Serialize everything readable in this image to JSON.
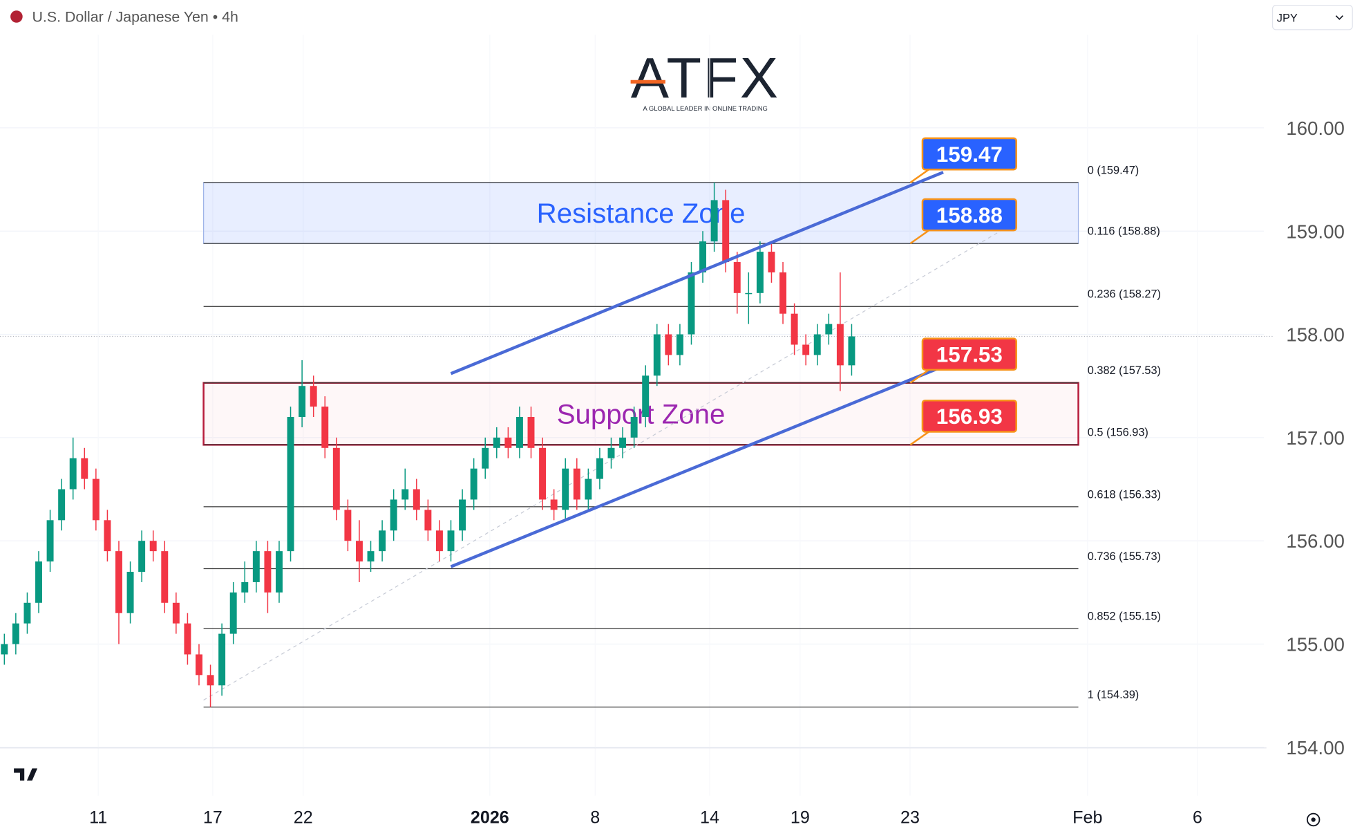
{
  "chart_data": {
    "type": "candlestick",
    "title": "U.S. Dollar / Japanese Yen • 4h",
    "currency": "JPY",
    "logo": {
      "name": "ATFX",
      "tagline": "A GLOBAL LEADER IN ONLINE TRADING"
    },
    "x": [
      0,
      1,
      2,
      3,
      4,
      5,
      6,
      7,
      8,
      9,
      10,
      11,
      12,
      13,
      14,
      15,
      16,
      17,
      18,
      19,
      20,
      21,
      22,
      23,
      24,
      25,
      26,
      27,
      28,
      29,
      30,
      31,
      32,
      33,
      34,
      35,
      36,
      37,
      38,
      39,
      40,
      41,
      42,
      43,
      44,
      45,
      46,
      47,
      48,
      49,
      50,
      51,
      52,
      53,
      54,
      55,
      56,
      57,
      58,
      59,
      60,
      61,
      62,
      63,
      64,
      65,
      66,
      67,
      68,
      69,
      70,
      71,
      72,
      73,
      74
    ],
    "open": [
      154.9,
      155.0,
      155.2,
      155.4,
      155.8,
      156.2,
      156.5,
      156.8,
      156.6,
      156.2,
      155.9,
      155.3,
      155.7,
      156.0,
      155.9,
      155.4,
      155.2,
      154.9,
      154.7,
      154.6,
      155.1,
      155.5,
      155.6,
      155.9,
      155.5,
      155.9,
      157.2,
      157.5,
      157.3,
      156.9,
      156.3,
      156.0,
      155.8,
      155.9,
      156.1,
      156.4,
      156.5,
      156.3,
      156.1,
      155.9,
      156.1,
      156.4,
      156.7,
      156.9,
      157.0,
      156.9,
      157.2,
      156.9,
      156.4,
      156.3,
      156.7,
      156.4,
      156.6,
      156.8,
      156.9,
      157.0,
      157.2,
      157.6,
      158.0,
      157.8,
      158.0,
      158.6,
      158.9,
      159.3,
      158.7,
      158.4,
      158.4,
      158.8,
      158.6,
      158.2,
      157.9,
      157.8,
      158.0,
      158.1,
      157.7
    ],
    "high": [
      155.1,
      155.3,
      155.5,
      155.9,
      156.3,
      156.6,
      157.0,
      156.9,
      156.7,
      156.3,
      156.0,
      155.8,
      156.1,
      156.1,
      156.0,
      155.5,
      155.3,
      155.0,
      154.8,
      155.2,
      155.6,
      155.8,
      156.0,
      156.0,
      156.0,
      157.3,
      157.75,
      157.6,
      157.4,
      157.0,
      156.4,
      156.2,
      156.0,
      156.2,
      156.5,
      156.7,
      156.6,
      156.4,
      156.2,
      156.2,
      156.5,
      156.8,
      157.0,
      157.1,
      157.1,
      157.3,
      157.3,
      157.0,
      156.5,
      156.8,
      156.8,
      156.7,
      156.9,
      157.0,
      157.1,
      157.3,
      157.7,
      158.1,
      158.1,
      158.1,
      158.7,
      159.0,
      159.47,
      159.4,
      158.8,
      158.6,
      158.9,
      158.9,
      158.7,
      158.3,
      158.0,
      158.1,
      158.2,
      158.6,
      158.1
    ],
    "low": [
      154.8,
      154.9,
      155.1,
      155.3,
      155.7,
      156.1,
      156.4,
      156.5,
      156.1,
      155.8,
      155.0,
      155.2,
      155.6,
      155.8,
      155.3,
      155.1,
      154.8,
      154.6,
      154.39,
      154.5,
      155.0,
      155.4,
      155.5,
      155.3,
      155.4,
      155.8,
      157.1,
      157.2,
      156.8,
      156.2,
      155.9,
      155.6,
      155.7,
      155.8,
      156.0,
      156.3,
      156.2,
      156.0,
      155.8,
      155.8,
      156.0,
      156.3,
      156.6,
      156.8,
      156.8,
      156.8,
      156.8,
      156.3,
      156.2,
      156.2,
      156.3,
      156.3,
      156.5,
      156.7,
      156.8,
      156.9,
      157.1,
      157.5,
      157.7,
      157.7,
      157.9,
      158.5,
      158.8,
      158.6,
      158.2,
      158.1,
      158.3,
      158.5,
      158.1,
      157.8,
      157.7,
      157.7,
      157.9,
      157.45,
      157.6
    ],
    "close": [
      155.0,
      155.2,
      155.4,
      155.8,
      156.2,
      156.5,
      156.8,
      156.6,
      156.2,
      155.9,
      155.3,
      155.7,
      156.0,
      155.9,
      155.4,
      155.2,
      154.9,
      154.7,
      154.6,
      155.1,
      155.5,
      155.6,
      155.9,
      155.5,
      155.9,
      157.2,
      157.5,
      157.3,
      156.9,
      156.3,
      156.0,
      155.8,
      155.9,
      156.1,
      156.4,
      156.5,
      156.3,
      156.1,
      155.9,
      156.1,
      156.4,
      156.7,
      156.9,
      157.0,
      156.9,
      157.2,
      156.9,
      156.4,
      156.3,
      156.7,
      156.4,
      156.6,
      156.8,
      156.9,
      157.0,
      157.2,
      157.6,
      158.0,
      157.8,
      158.0,
      158.6,
      158.9,
      159.3,
      158.7,
      158.4,
      158.4,
      158.8,
      158.6,
      158.2,
      157.9,
      157.8,
      158.0,
      158.1,
      157.7,
      157.98
    ],
    "up_color": "#089981",
    "down_color": "#f23645",
    "last_price": 157.98,
    "xlim": [
      -0.38,
      110
    ],
    "xticks": [
      {
        "value": 8.2,
        "label": "11"
      },
      {
        "value": 18.2,
        "label": "17"
      },
      {
        "value": 26.1,
        "label": "22"
      },
      {
        "value": 42.4,
        "label": "2026"
      },
      {
        "value": 51.6,
        "label": "8"
      },
      {
        "value": 61.6,
        "label": "14"
      },
      {
        "value": 69.5,
        "label": "19"
      },
      {
        "value": 79.1,
        "label": "23"
      },
      {
        "value": 94.6,
        "label": "Feb"
      },
      {
        "value": 104.2,
        "label": "6"
      }
    ],
    "ylim": [
      153.7,
      160.5
    ],
    "yticks": [
      {
        "value": 154,
        "label": "154.00"
      },
      {
        "value": 155,
        "label": "155.00"
      },
      {
        "value": 156,
        "label": "156.00"
      },
      {
        "value": 157,
        "label": "157.00"
      },
      {
        "value": 158,
        "label": "158.00"
      },
      {
        "value": 159,
        "label": "159.00"
      },
      {
        "value": 160,
        "label": "160.00"
      }
    ],
    "grid": true,
    "fib_range": [
      17.4,
      93.8
    ],
    "fib_levels": [
      {
        "value": 159.47,
        "label": "0 (159.47)"
      },
      {
        "value": 158.88,
        "label": "0.116 (158.88)"
      },
      {
        "value": 158.27,
        "label": "0.236 (158.27)"
      },
      {
        "value": 157.53,
        "label": "0.382 (157.53)"
      },
      {
        "value": 156.93,
        "label": "0.5 (156.93)"
      },
      {
        "value": 156.33,
        "label": "0.618 (156.33)"
      },
      {
        "value": 155.73,
        "label": "0.736 (155.73)"
      },
      {
        "value": 155.15,
        "label": "0.852 (155.15)"
      },
      {
        "value": 154.39,
        "label": "1 (154.39)"
      }
    ],
    "zones": [
      {
        "name": "Resistance Zone",
        "low": 158.88,
        "high": 159.47,
        "color": "#2962ff"
      },
      {
        "name": "Support Zone",
        "low": 156.93,
        "high": 157.53,
        "color": "#9c27b0"
      }
    ],
    "channel": {
      "color": "#4a6ad6",
      "x": [
        39.0,
        82.0
      ],
      "upper": [
        157.62,
        159.57
      ],
      "lower": [
        155.75,
        157.69
      ]
    },
    "price_tags": [
      {
        "value": 159.47,
        "color": "#2962ff"
      },
      {
        "value": 158.88,
        "color": "#2962ff"
      },
      {
        "value": 157.53,
        "color": "#f23645"
      },
      {
        "value": 156.93,
        "color": "#f23645"
      }
    ]
  }
}
